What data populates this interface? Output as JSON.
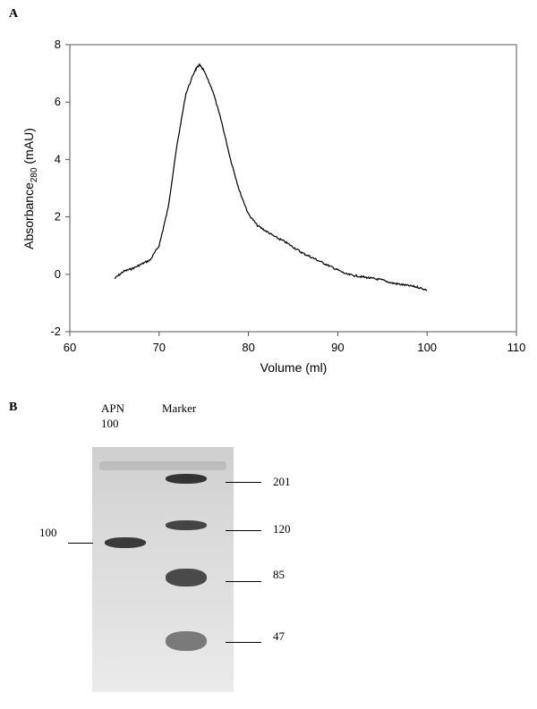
{
  "panel_a_label": "A",
  "panel_b_label": "B",
  "chart_data": {
    "type": "line",
    "xlabel": "Volume (ml)",
    "ylabel_main": "Absorbance",
    "ylabel_sub": "280",
    "ylabel_unit": " (mAU)",
    "xlim": [
      60,
      110
    ],
    "ylim": [
      -2,
      8
    ],
    "xticks": [
      60,
      70,
      80,
      90,
      100,
      110
    ],
    "yticks": [
      -2,
      0,
      2,
      4,
      6,
      8
    ],
    "grid": false,
    "series": [
      {
        "x": [
          65,
          66,
          67,
          68,
          69,
          70,
          71,
          72,
          73,
          74,
          74.5,
          75,
          76,
          77,
          78,
          79,
          80,
          81,
          82,
          83,
          84,
          85,
          86,
          87,
          88,
          89,
          90,
          91,
          92,
          93,
          94,
          95,
          96,
          97,
          98,
          99,
          100
        ],
        "y": [
          -0.15,
          0.1,
          0.2,
          0.35,
          0.5,
          1.0,
          2.3,
          4.5,
          6.3,
          7.1,
          7.3,
          7.1,
          6.4,
          5.3,
          4.0,
          2.9,
          2.1,
          1.7,
          1.5,
          1.3,
          1.15,
          0.95,
          0.75,
          0.6,
          0.45,
          0.3,
          0.15,
          0.0,
          -0.05,
          -0.1,
          -0.15,
          -0.2,
          -0.3,
          -0.35,
          -0.4,
          -0.45,
          -0.55
        ]
      }
    ]
  },
  "gel": {
    "lane1_label_line1": "APN",
    "lane1_label_line2": "100",
    "lane2_label": "Marker",
    "left_marker": "100",
    "markers": [
      "201",
      "120",
      "85",
      "47"
    ]
  }
}
